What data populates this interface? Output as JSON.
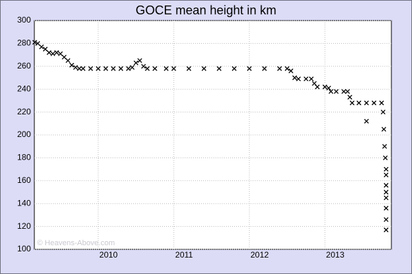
{
  "chart_data": {
    "type": "scatter",
    "title": "GOCE mean height in km",
    "watermark": "© Heavens-Above.com",
    "color": "#000000",
    "marker": "x",
    "grid": true,
    "xlim": [
      2009.155,
      2013.88
    ],
    "xticks": [
      2010,
      2011,
      2012,
      2013
    ],
    "ylim": [
      100,
      300
    ],
    "yticks": [
      100,
      120,
      140,
      160,
      180,
      200,
      220,
      240,
      260,
      280,
      300
    ],
    "x": [
      2009.16,
      2009.2,
      2009.25,
      2009.3,
      2009.35,
      2009.4,
      2009.45,
      2009.5,
      2009.55,
      2009.6,
      2009.65,
      2009.7,
      2009.75,
      2009.8,
      2009.9,
      2010.0,
      2010.1,
      2010.2,
      2010.3,
      2010.4,
      2010.45,
      2010.5,
      2010.55,
      2010.6,
      2010.65,
      2010.75,
      2010.9,
      2011.0,
      2011.2,
      2011.4,
      2011.6,
      2011.8,
      2012.0,
      2012.2,
      2012.4,
      2012.5,
      2012.55,
      2012.6,
      2012.65,
      2012.75,
      2012.82,
      2012.86,
      2012.9,
      2013.0,
      2013.05,
      2013.08,
      2013.15,
      2013.25,
      2013.3,
      2013.33,
      2013.36,
      2013.45,
      2013.55,
      2013.55,
      2013.65,
      2013.75,
      2013.77,
      2013.78,
      2013.79,
      2013.8,
      2013.81,
      2013.81,
      2013.81,
      2013.81,
      2013.81,
      2013.81,
      2013.81,
      2013.81
    ],
    "values": [
      281,
      280,
      277,
      275,
      272,
      271,
      272,
      271,
      268,
      265,
      261,
      259,
      258,
      258,
      258,
      258,
      258,
      258,
      258,
      258,
      259,
      263,
      265,
      260,
      258,
      258,
      258,
      258,
      258,
      258,
      258,
      258,
      258,
      258,
      258,
      258,
      256,
      250,
      249,
      249,
      249,
      245,
      242,
      242,
      241,
      238,
      238,
      238,
      238,
      233,
      228,
      228,
      212,
      228,
      228,
      228,
      220,
      205,
      190,
      180,
      170,
      165,
      156,
      150,
      145,
      136,
      126,
      117
    ]
  }
}
